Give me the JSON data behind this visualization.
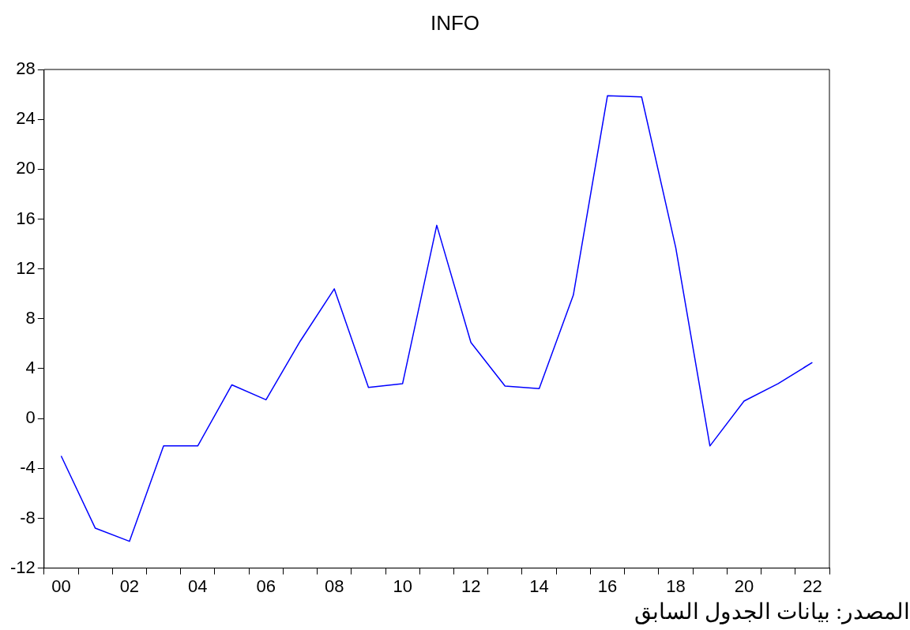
{
  "chart_data": {
    "type": "line",
    "title": "INFO",
    "categories": [
      "00",
      null,
      "02",
      null,
      "04",
      null,
      "06",
      null,
      "08",
      null,
      "10",
      null,
      "12",
      null,
      "14",
      null,
      "16",
      null,
      "18",
      null,
      "20",
      null,
      "22"
    ],
    "series": [
      {
        "color": "#0000ff",
        "values": [
          -3.0,
          -8.8,
          -9.85,
          -2.2,
          -2.2,
          2.7,
          1.5,
          6.2,
          10.4,
          2.5,
          2.8,
          15.5,
          6.1,
          2.6,
          2.4,
          9.9,
          25.9,
          25.8,
          13.7,
          -2.2,
          1.4,
          2.8,
          4.5
        ]
      }
    ],
    "ylim": [
      -12,
      28
    ],
    "yticks": [
      -12,
      -8,
      -4,
      0,
      4,
      8,
      12,
      16,
      20,
      24,
      28
    ],
    "grid": false,
    "legend": false,
    "marker": "none",
    "line_style": "solid",
    "annotations": [
      "المصدر: بيانات الجدول السابق"
    ]
  }
}
